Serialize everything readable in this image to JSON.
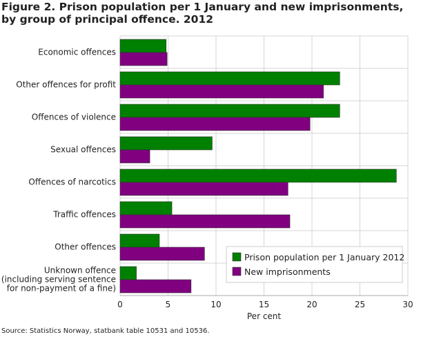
{
  "chart_data": {
    "type": "bar",
    "orientation": "horizontal",
    "title": "Figure 2. Prison population per 1 January and new imprisonments, by group of principal offence. 2012",
    "xlabel": "Per cent",
    "ylabel": "",
    "xlim": [
      0,
      30
    ],
    "xticks": [
      0,
      5,
      10,
      15,
      20,
      25,
      30
    ],
    "grid": true,
    "legend_position": "bottom-right",
    "categories": [
      "Economic offences",
      "Other offences for profit",
      "Offences of violence",
      "Sexual offences",
      "Offences of narcotics",
      "Traffic offences",
      "Other offences",
      "Unknown offence (including serving sentence for non-payment of a fine)"
    ],
    "category_lines": [
      [
        "Economic offences"
      ],
      [
        "Other offences for profit"
      ],
      [
        "Offences of violence"
      ],
      [
        "Sexual offences"
      ],
      [
        "Offences of narcotics"
      ],
      [
        "Traffic offences"
      ],
      [
        "Other offences"
      ],
      [
        "Unknown offence",
        "(including serving sentence",
        "for non-payment of a fine)"
      ]
    ],
    "series": [
      {
        "name": "Prison population per 1 January 2012",
        "color": "#008000",
        "values": [
          4.8,
          22.9,
          22.9,
          9.6,
          28.8,
          5.4,
          4.1,
          1.7
        ]
      },
      {
        "name": "New imprisonments",
        "color": "#800080",
        "values": [
          4.9,
          21.2,
          19.8,
          3.1,
          17.5,
          17.7,
          8.8,
          7.4
        ]
      }
    ],
    "source": "Source: Statistics Norway, statbank table 10531 and 10536."
  }
}
